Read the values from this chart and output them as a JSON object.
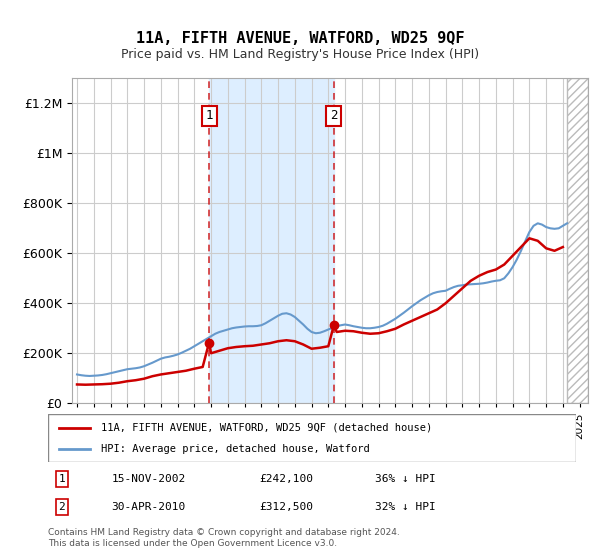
{
  "title": "11A, FIFTH AVENUE, WATFORD, WD25 9QF",
  "subtitle": "Price paid vs. HM Land Registry's House Price Index (HPI)",
  "legend_line1": "11A, FIFTH AVENUE, WATFORD, WD25 9QF (detached house)",
  "legend_line2": "HPI: Average price, detached house, Watford",
  "footer_line1": "Contains HM Land Registry data © Crown copyright and database right 2024.",
  "footer_line2": "This data is licensed under the Open Government Licence v3.0.",
  "transaction1_label": "1",
  "transaction1_date": "15-NOV-2002",
  "transaction1_price": "£242,100",
  "transaction1_hpi": "36% ↓ HPI",
  "transaction2_label": "2",
  "transaction2_date": "30-APR-2010",
  "transaction2_price": "£312,500",
  "transaction2_hpi": "32% ↓ HPI",
  "red_color": "#cc0000",
  "blue_color": "#6699cc",
  "shade_color": "#ddeeff",
  "hatch_color": "#cccccc",
  "ylim": [
    0,
    1300000
  ],
  "xlim_start": 1995.0,
  "xlim_end": 2025.5,
  "transaction1_x": 2002.88,
  "transaction1_y": 242100,
  "transaction2_x": 2010.33,
  "transaction2_y": 312500,
  "hpi_years": [
    1995.0,
    1995.25,
    1995.5,
    1995.75,
    1996.0,
    1996.25,
    1996.5,
    1996.75,
    1997.0,
    1997.25,
    1997.5,
    1997.75,
    1998.0,
    1998.25,
    1998.5,
    1998.75,
    1999.0,
    1999.25,
    1999.5,
    1999.75,
    2000.0,
    2000.25,
    2000.5,
    2000.75,
    2001.0,
    2001.25,
    2001.5,
    2001.75,
    2002.0,
    2002.25,
    2002.5,
    2002.75,
    2003.0,
    2003.25,
    2003.5,
    2003.75,
    2004.0,
    2004.25,
    2004.5,
    2004.75,
    2005.0,
    2005.25,
    2005.5,
    2005.75,
    2006.0,
    2006.25,
    2006.5,
    2006.75,
    2007.0,
    2007.25,
    2007.5,
    2007.75,
    2008.0,
    2008.25,
    2008.5,
    2008.75,
    2009.0,
    2009.25,
    2009.5,
    2009.75,
    2010.0,
    2010.25,
    2010.5,
    2010.75,
    2011.0,
    2011.25,
    2011.5,
    2011.75,
    2012.0,
    2012.25,
    2012.5,
    2012.75,
    2013.0,
    2013.25,
    2013.5,
    2013.75,
    2014.0,
    2014.25,
    2014.5,
    2014.75,
    2015.0,
    2015.25,
    2015.5,
    2015.75,
    2016.0,
    2016.25,
    2016.5,
    2016.75,
    2017.0,
    2017.25,
    2017.5,
    2017.75,
    2018.0,
    2018.25,
    2018.5,
    2018.75,
    2019.0,
    2019.25,
    2019.5,
    2019.75,
    2020.0,
    2020.25,
    2020.5,
    2020.75,
    2021.0,
    2021.25,
    2021.5,
    2021.75,
    2022.0,
    2022.25,
    2022.5,
    2022.75,
    2023.0,
    2023.25,
    2023.5,
    2023.75,
    2024.0,
    2024.25
  ],
  "hpi_values": [
    115000,
    112000,
    110000,
    109000,
    110000,
    111000,
    113000,
    116000,
    120000,
    124000,
    128000,
    132000,
    136000,
    138000,
    140000,
    143000,
    148000,
    155000,
    162000,
    170000,
    178000,
    183000,
    186000,
    190000,
    195000,
    202000,
    210000,
    218000,
    228000,
    238000,
    248000,
    258000,
    268000,
    278000,
    285000,
    290000,
    295000,
    300000,
    303000,
    305000,
    307000,
    308000,
    308000,
    309000,
    312000,
    320000,
    330000,
    340000,
    350000,
    358000,
    360000,
    355000,
    345000,
    330000,
    315000,
    298000,
    285000,
    280000,
    282000,
    288000,
    295000,
    302000,
    308000,
    312000,
    315000,
    312000,
    308000,
    305000,
    302000,
    300000,
    300000,
    302000,
    305000,
    310000,
    318000,
    328000,
    338000,
    350000,
    362000,
    375000,
    388000,
    400000,
    412000,
    422000,
    432000,
    440000,
    445000,
    448000,
    450000,
    458000,
    465000,
    470000,
    472000,
    475000,
    476000,
    477000,
    478000,
    480000,
    483000,
    487000,
    490000,
    492000,
    500000,
    520000,
    545000,
    575000,
    610000,
    648000,
    685000,
    710000,
    720000,
    715000,
    705000,
    700000,
    698000,
    700000,
    710000,
    720000
  ],
  "red_years": [
    1995.0,
    1995.5,
    1996.0,
    1996.5,
    1997.0,
    1997.5,
    1998.0,
    1998.5,
    1999.0,
    1999.5,
    2000.0,
    2000.5,
    2001.0,
    2001.5,
    2002.0,
    2002.5,
    2002.88,
    2003.0,
    2003.5,
    2004.0,
    2004.5,
    2005.0,
    2005.5,
    2006.0,
    2006.5,
    2007.0,
    2007.5,
    2008.0,
    2008.5,
    2009.0,
    2009.5,
    2010.0,
    2010.33,
    2010.5,
    2011.0,
    2011.5,
    2012.0,
    2012.5,
    2013.0,
    2013.5,
    2014.0,
    2014.5,
    2015.0,
    2015.5,
    2016.0,
    2016.5,
    2017.0,
    2017.5,
    2018.0,
    2018.5,
    2019.0,
    2019.5,
    2020.0,
    2020.5,
    2021.0,
    2021.5,
    2022.0,
    2022.5,
    2023.0,
    2023.5,
    2024.0
  ],
  "red_values": [
    75000,
    74000,
    75000,
    76000,
    78000,
    82000,
    88000,
    92000,
    98000,
    108000,
    115000,
    120000,
    125000,
    130000,
    138000,
    145000,
    242100,
    200000,
    210000,
    220000,
    225000,
    228000,
    230000,
    235000,
    240000,
    248000,
    252000,
    248000,
    235000,
    218000,
    222000,
    228000,
    312500,
    285000,
    290000,
    288000,
    282000,
    278000,
    280000,
    288000,
    298000,
    315000,
    330000,
    345000,
    360000,
    375000,
    400000,
    430000,
    460000,
    490000,
    510000,
    525000,
    535000,
    555000,
    590000,
    625000,
    660000,
    650000,
    620000,
    610000,
    625000
  ]
}
